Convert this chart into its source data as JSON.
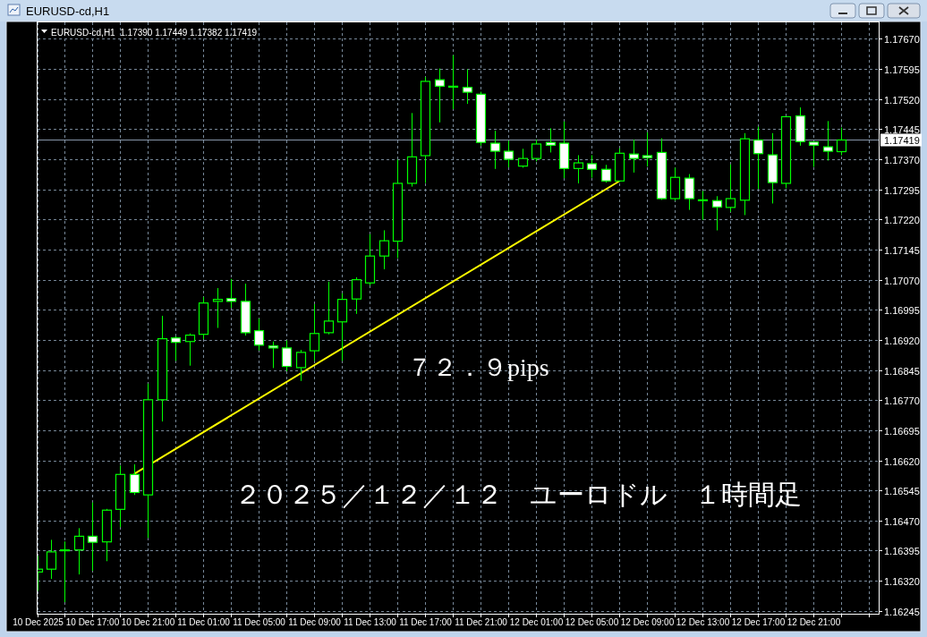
{
  "chart_data": {
    "type": "candlestick",
    "title": "EURUSD-cd,H1",
    "subtitle": "EURUSD-cd,H1  1.17390 1.17449 1.17382 1.17419",
    "color": "#00ff00",
    "x": [
      "2025-12-10T13:00",
      "2025-12-10T14:00",
      "2025-12-10T15:00",
      "2025-12-10T16:00",
      "2025-12-10T17:00",
      "2025-12-10T18:00",
      "2025-12-10T19:00",
      "2025-12-10T20:00",
      "2025-12-10T21:00",
      "2025-12-10T22:00",
      "2025-12-10T23:00",
      "2025-12-11T00:00",
      "2025-12-11T01:00",
      "2025-12-11T02:00",
      "2025-12-11T03:00",
      "2025-12-11T04:00",
      "2025-12-11T05:00",
      "2025-12-11T06:00",
      "2025-12-11T07:00",
      "2025-12-11T08:00",
      "2025-12-11T09:00",
      "2025-12-11T10:00",
      "2025-12-11T11:00",
      "2025-12-11T12:00",
      "2025-12-11T13:00",
      "2025-12-11T14:00",
      "2025-12-11T15:00",
      "2025-12-11T16:00",
      "2025-12-11T17:00",
      "2025-12-11T18:00",
      "2025-12-11T19:00",
      "2025-12-11T20:00",
      "2025-12-11T21:00",
      "2025-12-11T22:00",
      "2025-12-11T23:00",
      "2025-12-12T00:00",
      "2025-12-12T01:00",
      "2025-12-12T02:00",
      "2025-12-12T03:00",
      "2025-12-12T04:00",
      "2025-12-12T05:00",
      "2025-12-12T06:00",
      "2025-12-12T07:00",
      "2025-12-12T08:00",
      "2025-12-12T09:00",
      "2025-12-12T10:00",
      "2025-12-12T11:00",
      "2025-12-12T12:00",
      "2025-12-12T13:00",
      "2025-12-12T14:00",
      "2025-12-12T15:00",
      "2025-12-12T16:00",
      "2025-12-12T17:00",
      "2025-12-12T18:00",
      "2025-12-12T19:00",
      "2025-12-12T20:00",
      "2025-12-12T21:00",
      "2025-12-12T22:00",
      "2025-12-12T23:00"
    ],
    "ohlc": [
      [
        1.16343,
        1.16382,
        1.16297,
        1.1635
      ],
      [
        1.1635,
        1.16422,
        1.16327,
        1.16393
      ],
      [
        1.16398,
        1.16418,
        1.16269,
        1.16398
      ],
      [
        1.16398,
        1.16451,
        1.16338,
        1.16432
      ],
      [
        1.16432,
        1.16515,
        1.16347,
        1.16417
      ],
      [
        1.16418,
        1.16499,
        1.16371,
        1.16497
      ],
      [
        1.16499,
        1.16607,
        1.16456,
        1.16586
      ],
      [
        1.16586,
        1.1661,
        1.16536,
        1.16541
      ],
      [
        1.16535,
        1.16811,
        1.16429,
        1.16772
      ],
      [
        1.16772,
        1.1698,
        1.16719,
        1.16924
      ],
      [
        1.16926,
        1.16929,
        1.1687,
        1.16915
      ],
      [
        1.16917,
        1.16936,
        1.16858,
        1.16933
      ],
      [
        1.16935,
        1.17027,
        1.16924,
        1.17013
      ],
      [
        1.17017,
        1.17049,
        1.16952,
        1.17022
      ],
      [
        1.17024,
        1.17072,
        1.17002,
        1.17017
      ],
      [
        1.17017,
        1.1706,
        1.16933,
        1.16939
      ],
      [
        1.16944,
        1.16973,
        1.16896,
        1.16908
      ],
      [
        1.16906,
        1.16916,
        1.16852,
        1.16901
      ],
      [
        1.16901,
        1.16919,
        1.16844,
        1.16855
      ],
      [
        1.16852,
        1.16895,
        1.1682,
        1.1689
      ],
      [
        1.16894,
        1.17009,
        1.1687,
        1.16937
      ],
      [
        1.16939,
        1.17065,
        1.16936,
        1.16968
      ],
      [
        1.16966,
        1.17036,
        1.1687,
        1.17022
      ],
      [
        1.17023,
        1.17076,
        1.16987,
        1.17071
      ],
      [
        1.17063,
        1.17183,
        1.17058,
        1.1713
      ],
      [
        1.1713,
        1.17193,
        1.17098,
        1.17168
      ],
      [
        1.17167,
        1.17369,
        1.17126,
        1.17311
      ],
      [
        1.17311,
        1.17485,
        1.17304,
        1.17377
      ],
      [
        1.1738,
        1.17575,
        1.17313,
        1.17565
      ],
      [
        1.17569,
        1.17596,
        1.17464,
        1.17553
      ],
      [
        1.17553,
        1.17629,
        1.17497,
        1.17553
      ],
      [
        1.1755,
        1.17594,
        1.1751,
        1.17538
      ],
      [
        1.17533,
        1.17538,
        1.17406,
        1.17413
      ],
      [
        1.17411,
        1.17441,
        1.17348,
        1.17391
      ],
      [
        1.17391,
        1.17416,
        1.17352,
        1.17371
      ],
      [
        1.17354,
        1.17396,
        1.17351,
        1.17373
      ],
      [
        1.17373,
        1.17419,
        1.17367,
        1.17409
      ],
      [
        1.17413,
        1.17447,
        1.17389,
        1.17406
      ],
      [
        1.17411,
        1.17464,
        1.17325,
        1.17348
      ],
      [
        1.17348,
        1.1738,
        1.17312,
        1.17362
      ],
      [
        1.1736,
        1.1738,
        1.17326,
        1.17346
      ],
      [
        1.17346,
        1.17356,
        1.17314,
        1.17317
      ],
      [
        1.17317,
        1.17397,
        1.17316,
        1.17386
      ],
      [
        1.17384,
        1.17419,
        1.17339,
        1.17373
      ],
      [
        1.1738,
        1.17437,
        1.17354,
        1.17375
      ],
      [
        1.17388,
        1.17422,
        1.17271,
        1.17273
      ],
      [
        1.17273,
        1.17349,
        1.17269,
        1.17326
      ],
      [
        1.17324,
        1.17333,
        1.17246,
        1.17273
      ],
      [
        1.1727,
        1.17291,
        1.17221,
        1.1727
      ],
      [
        1.17268,
        1.17278,
        1.17195,
        1.17252
      ],
      [
        1.17251,
        1.17357,
        1.17241,
        1.17273
      ],
      [
        1.17269,
        1.17435,
        1.17233,
        1.17422
      ],
      [
        1.17419,
        1.17451,
        1.17298,
        1.17385
      ],
      [
        1.17382,
        1.17435,
        1.17262,
        1.17313
      ],
      [
        1.17311,
        1.17477,
        1.173,
        1.17477
      ],
      [
        1.17479,
        1.17499,
        1.17406,
        1.17415
      ],
      [
        1.17414,
        1.17415,
        1.17353,
        1.17406
      ],
      [
        1.17402,
        1.17465,
        1.17369,
        1.17391
      ],
      [
        1.1739,
        1.17449,
        1.17382,
        1.17419
      ]
    ],
    "series": [
      {
        "type": "line",
        "x": [
          "2025-12-10T20:00",
          "2025-12-12T07:00"
        ],
        "values": [
          1.16588,
          1.17317
        ],
        "color": "#ffff00"
      }
    ],
    "xlim": [
      "2025-12-10T13:00",
      "2025-12-13T01:40"
    ],
    "xticks": [
      {
        "value": "2025-12-10T13:00",
        "label": "10 Dec 2025"
      },
      {
        "value": "2025-12-10T15:00",
        "label": null
      },
      {
        "value": "2025-12-10T17:00",
        "label": "10 Dec 17:00"
      },
      {
        "value": "2025-12-10T19:00",
        "label": null
      },
      {
        "value": "2025-12-10T21:00",
        "label": "10 Dec 21:00"
      },
      {
        "value": "2025-12-10T23:00",
        "label": null
      },
      {
        "value": "2025-12-11T01:00",
        "label": "11 Dec 01:00"
      },
      {
        "value": "2025-12-11T03:00",
        "label": null
      },
      {
        "value": "2025-12-11T05:00",
        "label": "11 Dec 05:00"
      },
      {
        "value": "2025-12-11T07:00",
        "label": null
      },
      {
        "value": "2025-12-11T09:00",
        "label": "11 Dec 09:00"
      },
      {
        "value": "2025-12-11T11:00",
        "label": null
      },
      {
        "value": "2025-12-11T13:00",
        "label": "11 Dec 13:00"
      },
      {
        "value": "2025-12-11T15:00",
        "label": null
      },
      {
        "value": "2025-12-11T17:00",
        "label": "11 Dec 17:00"
      },
      {
        "value": "2025-12-11T19:00",
        "label": null
      },
      {
        "value": "2025-12-11T21:00",
        "label": "11 Dec 21:00"
      },
      {
        "value": "2025-12-11T23:00",
        "label": null
      },
      {
        "value": "2025-12-12T01:00",
        "label": "12 Dec 01:00"
      },
      {
        "value": "2025-12-12T03:00",
        "label": null
      },
      {
        "value": "2025-12-12T05:00",
        "label": "12 Dec 05:00"
      },
      {
        "value": "2025-12-12T07:00",
        "label": null
      },
      {
        "value": "2025-12-12T09:00",
        "label": "12 Dec 09:00"
      },
      {
        "value": "2025-12-12T11:00",
        "label": null
      },
      {
        "value": "2025-12-12T13:00",
        "label": "12 Dec 13:00"
      },
      {
        "value": "2025-12-12T15:00",
        "label": null
      },
      {
        "value": "2025-12-12T17:00",
        "label": "12 Dec 17:00"
      },
      {
        "value": "2025-12-12T19:00",
        "label": null
      },
      {
        "value": "2025-12-12T21:00",
        "label": "12 Dec 21:00"
      },
      {
        "value": "2025-12-12T23:00",
        "label": null
      },
      {
        "value": "2025-12-13T01:00",
        "label": null
      }
    ],
    "ylim": [
      1.16239,
      1.17712
    ],
    "yticks": [
      1.16245,
      {
        "value": 1.1632,
        "label": "1.16320"
      },
      1.16395,
      {
        "value": 1.1647,
        "label": "1.16470"
      },
      1.16545,
      {
        "value": 1.1662,
        "label": "1.16620"
      },
      1.16695,
      {
        "value": 1.1677,
        "label": "1.16770"
      },
      1.16845,
      {
        "value": 1.1692,
        "label": "1.16920"
      },
      1.16995,
      {
        "value": 1.1707,
        "label": "1.17070"
      },
      1.17145,
      {
        "value": 1.1722,
        "label": "1.17220"
      },
      1.17295,
      {
        "value": 1.1737,
        "label": "1.17370"
      },
      1.17445,
      {
        "value": 1.1752,
        "label": "1.17520"
      },
      1.17595,
      {
        "value": 1.1767,
        "label": "1.17670"
      }
    ],
    "grid": true,
    "ref_lines": [
      {
        "axis": "y",
        "value": 1.17419,
        "label": "1.17419",
        "color": "#8796aa"
      }
    ],
    "annotations": [
      "７２．９pips",
      "２０２５／１２／１２　ユーロドル　１時間足"
    ]
  }
}
